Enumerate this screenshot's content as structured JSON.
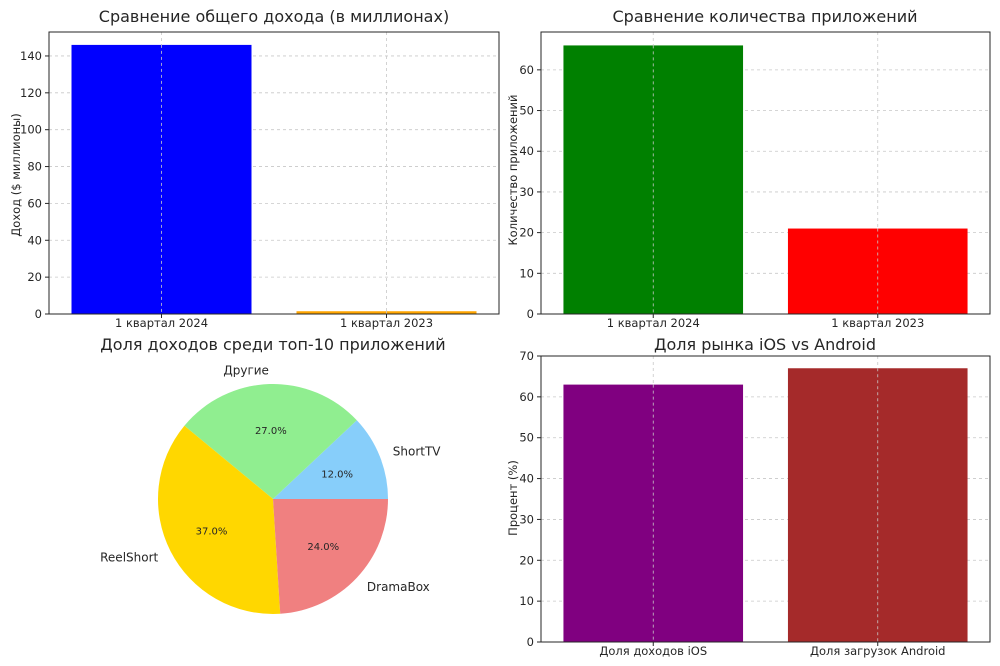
{
  "chart_data": [
    {
      "type": "bar",
      "title": "Сравнение общего дохода (в миллионах)",
      "xlabel": "",
      "ylabel": "Доход ($ миллионы)",
      "categories": [
        "1 квартал 2024",
        "1 квартал 2023"
      ],
      "values": [
        146,
        1.5
      ],
      "colors": [
        "#0000ff",
        "#ffa500"
      ],
      "ylim": [
        0,
        153
      ],
      "yticks": [
        0,
        20,
        40,
        60,
        80,
        100,
        120,
        140
      ],
      "grid": true
    },
    {
      "type": "bar",
      "title": "Сравнение количества приложений",
      "xlabel": "",
      "ylabel": "Количество приложений",
      "categories": [
        "1 квартал 2024",
        "1 квартал 2023"
      ],
      "values": [
        66,
        21
      ],
      "colors": [
        "#008000",
        "#ff0000"
      ],
      "ylim": [
        0,
        69.3
      ],
      "yticks": [
        0,
        10,
        20,
        30,
        40,
        50,
        60
      ],
      "grid": true
    },
    {
      "type": "pie",
      "title": "Доля доходов среди топ-10 приложений",
      "labels": [
        "ShortTV",
        "Другие",
        "ReelShort",
        "DramaBox"
      ],
      "values": [
        12.0,
        27.0,
        37.0,
        24.0
      ],
      "value_labels": [
        "12.0%",
        "27.0%",
        "37.0%",
        "24.0%"
      ],
      "colors": [
        "#87cefa",
        "#90ee90",
        "#ffd700",
        "#f08080"
      ]
    },
    {
      "type": "bar",
      "title": "Доля рынка iOS vs Android",
      "xlabel": "",
      "ylabel": "Процент (%)",
      "categories": [
        "Доля доходов iOS",
        "Доля загрузок Android"
      ],
      "values": [
        63,
        67
      ],
      "colors": [
        "#800080",
        "#a52a2a"
      ],
      "ylim": [
        0,
        70
      ],
      "yticks": [
        0,
        10,
        20,
        30,
        40,
        50,
        60,
        70
      ],
      "grid": true
    }
  ]
}
